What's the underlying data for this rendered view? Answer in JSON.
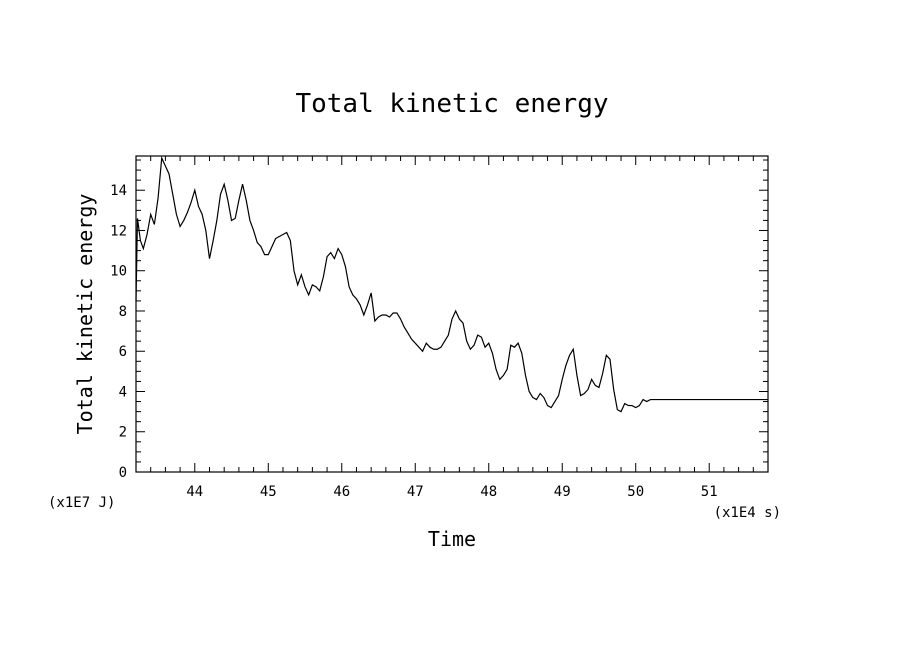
{
  "chart_data": {
    "type": "line",
    "title": "Total kinetic energy",
    "xlabel": "Time",
    "ylabel": "Total kinetic energy",
    "x_multiplier": "(x1E4 s)",
    "y_multiplier": "(x1E7 J)",
    "xlim": [
      43.2,
      51.8
    ],
    "ylim": [
      0,
      15.7
    ],
    "x_ticks": [
      44,
      45,
      46,
      47,
      48,
      49,
      50,
      51
    ],
    "x_tick_labels": [
      "44",
      "45",
      "46",
      "47",
      "48",
      "49",
      "50",
      "51"
    ],
    "y_ticks": [
      0,
      2,
      4,
      6,
      8,
      10,
      12,
      14
    ],
    "y_tick_labels": [
      "0",
      "2",
      "4",
      "6",
      "8",
      "10",
      "12",
      "14"
    ],
    "grid": false,
    "line_color": "#000000",
    "series": [
      {
        "x": [
          43.2,
          43.22,
          43.26,
          43.3,
          43.35,
          43.4,
          43.45,
          43.5,
          43.55,
          43.6,
          43.65,
          43.7,
          43.75,
          43.8,
          43.85,
          43.9,
          43.95,
          44.0,
          44.05,
          44.1,
          44.15,
          44.2,
          44.25,
          44.3,
          44.35,
          44.4,
          44.45,
          44.5,
          44.55,
          44.6,
          44.65,
          44.7,
          44.75,
          44.8,
          44.85,
          44.9,
          44.95,
          45.0,
          45.05,
          45.1,
          45.15,
          45.2,
          45.25,
          45.3,
          45.35,
          45.4,
          45.45,
          45.5,
          45.55,
          45.6,
          45.65,
          45.7,
          45.75,
          45.8,
          45.85,
          45.9,
          45.95,
          46.0,
          46.05,
          46.1,
          46.15,
          46.2,
          46.25,
          46.3,
          46.35,
          46.4,
          46.45,
          46.5,
          46.55,
          46.6,
          46.65,
          46.7,
          46.75,
          46.8,
          46.85,
          46.9,
          46.95,
          47.0,
          47.05,
          47.1,
          47.15,
          47.2,
          47.25,
          47.3,
          47.35,
          47.4,
          47.45,
          47.5,
          47.55,
          47.6,
          47.65,
          47.7,
          47.75,
          47.8,
          47.85,
          47.9,
          47.95,
          48.0,
          48.05,
          48.1,
          48.15,
          48.2,
          48.25,
          48.3,
          48.35,
          48.4,
          48.45,
          48.5,
          48.55,
          48.6,
          48.65,
          48.7,
          48.75,
          48.8,
          48.85,
          48.9,
          48.95,
          49.0,
          49.05,
          49.1,
          49.15,
          49.2,
          49.25,
          49.3,
          49.35,
          49.4,
          49.45,
          49.5,
          49.55,
          49.6,
          49.65,
          49.7,
          49.75,
          49.8,
          49.85,
          49.9,
          49.95,
          50.0,
          50.05,
          50.1,
          50.15,
          50.2,
          50.25,
          50.3,
          50.35,
          50.4,
          50.45,
          50.5,
          50.55,
          50.6,
          50.65,
          50.7,
          50.75,
          50.8,
          50.85,
          50.9,
          50.95,
          51.0,
          51.05,
          51.1,
          51.15,
          51.2,
          51.25,
          51.3,
          51.35,
          51.4,
          51.45,
          51.5,
          51.55,
          51.6,
          51.65,
          51.7,
          51.75,
          51.8
        ],
        "y": [
          8.5,
          12.6,
          11.5,
          11.1,
          11.8,
          12.8,
          12.3,
          13.6,
          15.6,
          15.2,
          14.8,
          13.8,
          12.8,
          12.2,
          12.5,
          12.9,
          13.4,
          14.0,
          13.2,
          12.8,
          12.0,
          10.6,
          11.5,
          12.5,
          13.8,
          14.3,
          13.5,
          12.5,
          12.6,
          13.5,
          14.3,
          13.5,
          12.5,
          12.0,
          11.4,
          11.2,
          10.8,
          10.8,
          11.2,
          11.6,
          11.7,
          11.8,
          11.9,
          11.5,
          10.0,
          9.3,
          9.8,
          9.2,
          8.8,
          9.3,
          9.2,
          9.0,
          9.7,
          10.7,
          10.9,
          10.6,
          11.1,
          10.8,
          10.2,
          9.2,
          8.8,
          8.6,
          8.3,
          7.8,
          8.3,
          8.9,
          7.5,
          7.7,
          7.8,
          7.8,
          7.7,
          7.9,
          7.9,
          7.6,
          7.2,
          6.9,
          6.6,
          6.4,
          6.2,
          6.0,
          6.4,
          6.2,
          6.1,
          6.1,
          6.2,
          6.5,
          6.8,
          7.6,
          8.0,
          7.6,
          7.4,
          6.5,
          6.1,
          6.3,
          6.8,
          6.7,
          6.2,
          6.4,
          5.9,
          5.1,
          4.6,
          4.8,
          5.1,
          6.3,
          6.2,
          6.4,
          5.9,
          4.8,
          4.0,
          3.7,
          3.6,
          3.9,
          3.7,
          3.3,
          3.2,
          3.5,
          3.8,
          4.6,
          5.3,
          5.8,
          6.1,
          4.8,
          3.8,
          3.9,
          4.1,
          4.6,
          4.3,
          4.2,
          4.9,
          5.8,
          5.6,
          4.1,
          3.1,
          3.0,
          3.4,
          3.3,
          3.3,
          3.2,
          3.3,
          3.6,
          3.5,
          3.6,
          3.6,
          3.6,
          3.6,
          3.6,
          3.6,
          3.6,
          3.6,
          3.6,
          3.6,
          3.6,
          3.6,
          3.6,
          3.6,
          3.6,
          3.6,
          3.6,
          3.6,
          3.6,
          3.6,
          3.6,
          3.6,
          3.6,
          3.6,
          3.6,
          3.6,
          3.6,
          3.6,
          3.6,
          3.6,
          3.6,
          3.6,
          3.6
        ]
      }
    ]
  }
}
